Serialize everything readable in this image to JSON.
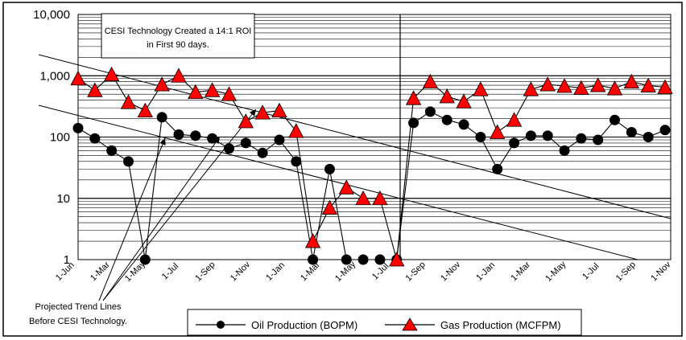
{
  "chart_data": {
    "type": "line",
    "yscale": "log",
    "ylim": [
      1,
      10000
    ],
    "y_tick_labels": [
      "10,000",
      "1,000",
      "100",
      "10",
      "1"
    ],
    "y_tick_values": [
      10000,
      1000,
      100,
      10,
      1
    ],
    "grid": true,
    "x_tick_labels": [
      "1-Jun",
      "1-Mar",
      "1-May",
      "1-Jul",
      "1-Sep",
      "1-Nov",
      "1-Jan",
      "1-Mar",
      "1-May",
      "1-Jul",
      "1-Sep",
      "1-Nov",
      "1-Jan",
      "1-Mar",
      "1-May",
      "1-Jul",
      "1-Sep",
      "1-Nov"
    ],
    "series": [
      {
        "name": "Oil Production (BOPM)",
        "marker": "circle",
        "color": "#000000",
        "values": [
          140,
          95,
          60,
          40,
          1,
          210,
          110,
          105,
          95,
          65,
          80,
          55,
          90,
          40,
          1,
          30,
          1,
          1,
          1,
          1,
          170,
          260,
          190,
          160,
          100,
          30,
          80,
          105,
          105,
          60,
          95,
          90,
          190,
          120,
          100,
          130
        ]
      },
      {
        "name": "Gas Production (MCFPM)",
        "marker": "triangle",
        "color": "#ff0000",
        "values": [
          900,
          580,
          1050,
          370,
          270,
          720,
          1000,
          540,
          580,
          500,
          180,
          250,
          270,
          125,
          2,
          7,
          15,
          10,
          10,
          1,
          430,
          800,
          460,
          380,
          600,
          120,
          190,
          600,
          720,
          680,
          630,
          700,
          620,
          800,
          690,
          650
        ]
      }
    ],
    "legend_position": "bottom",
    "annotations": {
      "roi_box": [
        "CESI Technology Created a 14:1 ROI",
        "in First 90 days."
      ],
      "trend_label": [
        "Projected Trend Lines",
        "Before CESI Technology."
      ]
    }
  }
}
